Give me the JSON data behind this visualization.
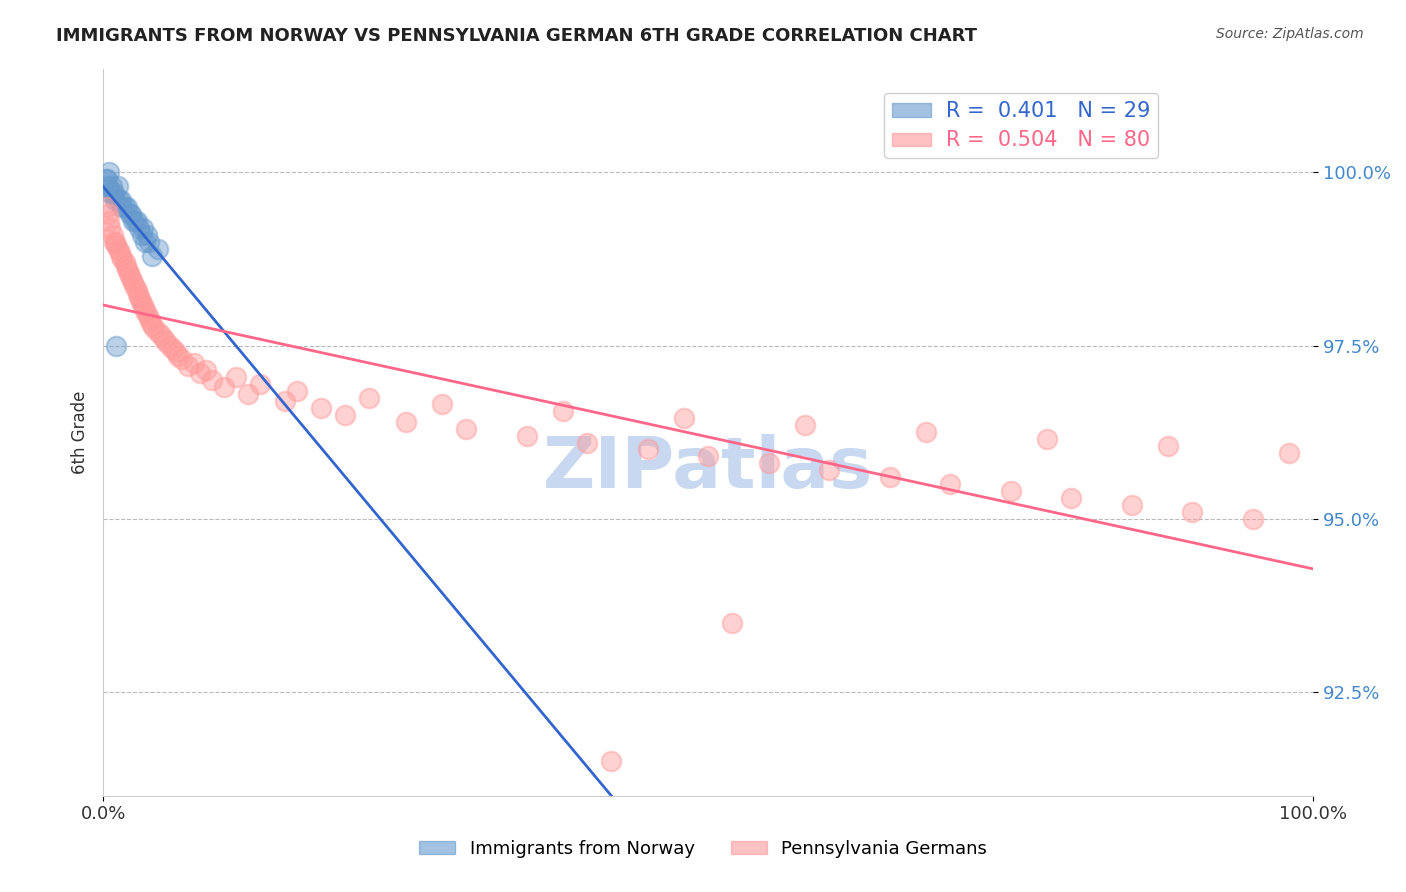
{
  "title": "IMMIGRANTS FROM NORWAY VS PENNSYLVANIA GERMAN 6TH GRADE CORRELATION CHART",
  "source_text": "Source: ZipAtlas.com",
  "xlabel": "",
  "ylabel": "6th Grade",
  "x_label_bottom_left": "0.0%",
  "x_label_bottom_right": "100.0%",
  "y_ticks": [
    92.5,
    95.0,
    97.5,
    100.0
  ],
  "y_tick_labels": [
    "92.5%",
    "95.0%",
    "97.5%",
    "100.0%"
  ],
  "xlim": [
    0.0,
    100.0
  ],
  "ylim": [
    91.0,
    101.5
  ],
  "legend_norway": "R =  0.401   N = 29",
  "legend_penn": "R =  0.504   N = 80",
  "norway_color": "#6699cc",
  "penn_color": "#ff9999",
  "norway_line_color": "#3366cc",
  "penn_line_color": "#ff6688",
  "watermark": "ZIPatlas",
  "watermark_color": "#c8d8f0",
  "background_color": "#ffffff",
  "norway_scatter_x": [
    0.5,
    1.2,
    2.0,
    2.5,
    3.0,
    3.5,
    4.0,
    0.3,
    0.8,
    1.5,
    2.2,
    3.2,
    0.4,
    0.6,
    1.0,
    1.8,
    2.8,
    3.8,
    0.2,
    0.7,
    1.3,
    2.3,
    3.3,
    4.5,
    0.9,
    1.6,
    2.6,
    3.6,
    1.1
  ],
  "norway_scatter_y": [
    100.0,
    99.8,
    99.5,
    99.3,
    99.2,
    99.0,
    98.8,
    99.9,
    99.7,
    99.6,
    99.4,
    99.1,
    99.8,
    99.7,
    99.6,
    99.5,
    99.3,
    99.0,
    99.9,
    99.8,
    99.6,
    99.4,
    99.2,
    98.9,
    99.7,
    99.5,
    99.3,
    99.1,
    97.5
  ],
  "penn_scatter_x": [
    0.3,
    0.5,
    0.8,
    1.0,
    1.2,
    1.5,
    1.8,
    2.0,
    2.2,
    2.5,
    2.8,
    3.0,
    3.2,
    3.5,
    3.8,
    4.0,
    4.5,
    5.0,
    5.5,
    6.0,
    6.5,
    7.0,
    8.0,
    9.0,
    10.0,
    12.0,
    15.0,
    18.0,
    20.0,
    25.0,
    30.0,
    35.0,
    40.0,
    45.0,
    50.0,
    55.0,
    60.0,
    65.0,
    70.0,
    75.0,
    80.0,
    85.0,
    90.0,
    95.0,
    0.4,
    0.6,
    0.9,
    1.1,
    1.4,
    1.6,
    1.9,
    2.1,
    2.4,
    2.6,
    2.9,
    3.1,
    3.4,
    3.6,
    3.9,
    4.2,
    4.8,
    5.2,
    5.8,
    6.2,
    7.5,
    8.5,
    11.0,
    13.0,
    16.0,
    22.0,
    28.0,
    38.0,
    48.0,
    58.0,
    68.0,
    78.0,
    88.0,
    98.0,
    42.0,
    52.0
  ],
  "penn_scatter_y": [
    99.5,
    99.3,
    99.1,
    99.0,
    98.9,
    98.8,
    98.7,
    98.6,
    98.5,
    98.4,
    98.3,
    98.2,
    98.1,
    98.0,
    97.9,
    97.8,
    97.7,
    97.6,
    97.5,
    97.4,
    97.3,
    97.2,
    97.1,
    97.0,
    96.9,
    96.8,
    96.7,
    96.6,
    96.5,
    96.4,
    96.3,
    96.2,
    96.1,
    96.0,
    95.9,
    95.8,
    95.7,
    95.6,
    95.5,
    95.4,
    95.3,
    95.2,
    95.1,
    95.0,
    99.4,
    99.2,
    99.0,
    98.95,
    98.85,
    98.75,
    98.65,
    98.55,
    98.45,
    98.35,
    98.25,
    98.15,
    98.05,
    97.95,
    97.85,
    97.75,
    97.65,
    97.55,
    97.45,
    97.35,
    97.25,
    97.15,
    97.05,
    96.95,
    96.85,
    96.75,
    96.65,
    96.55,
    96.45,
    96.35,
    96.25,
    96.15,
    96.05,
    95.95,
    91.5,
    93.5
  ]
}
